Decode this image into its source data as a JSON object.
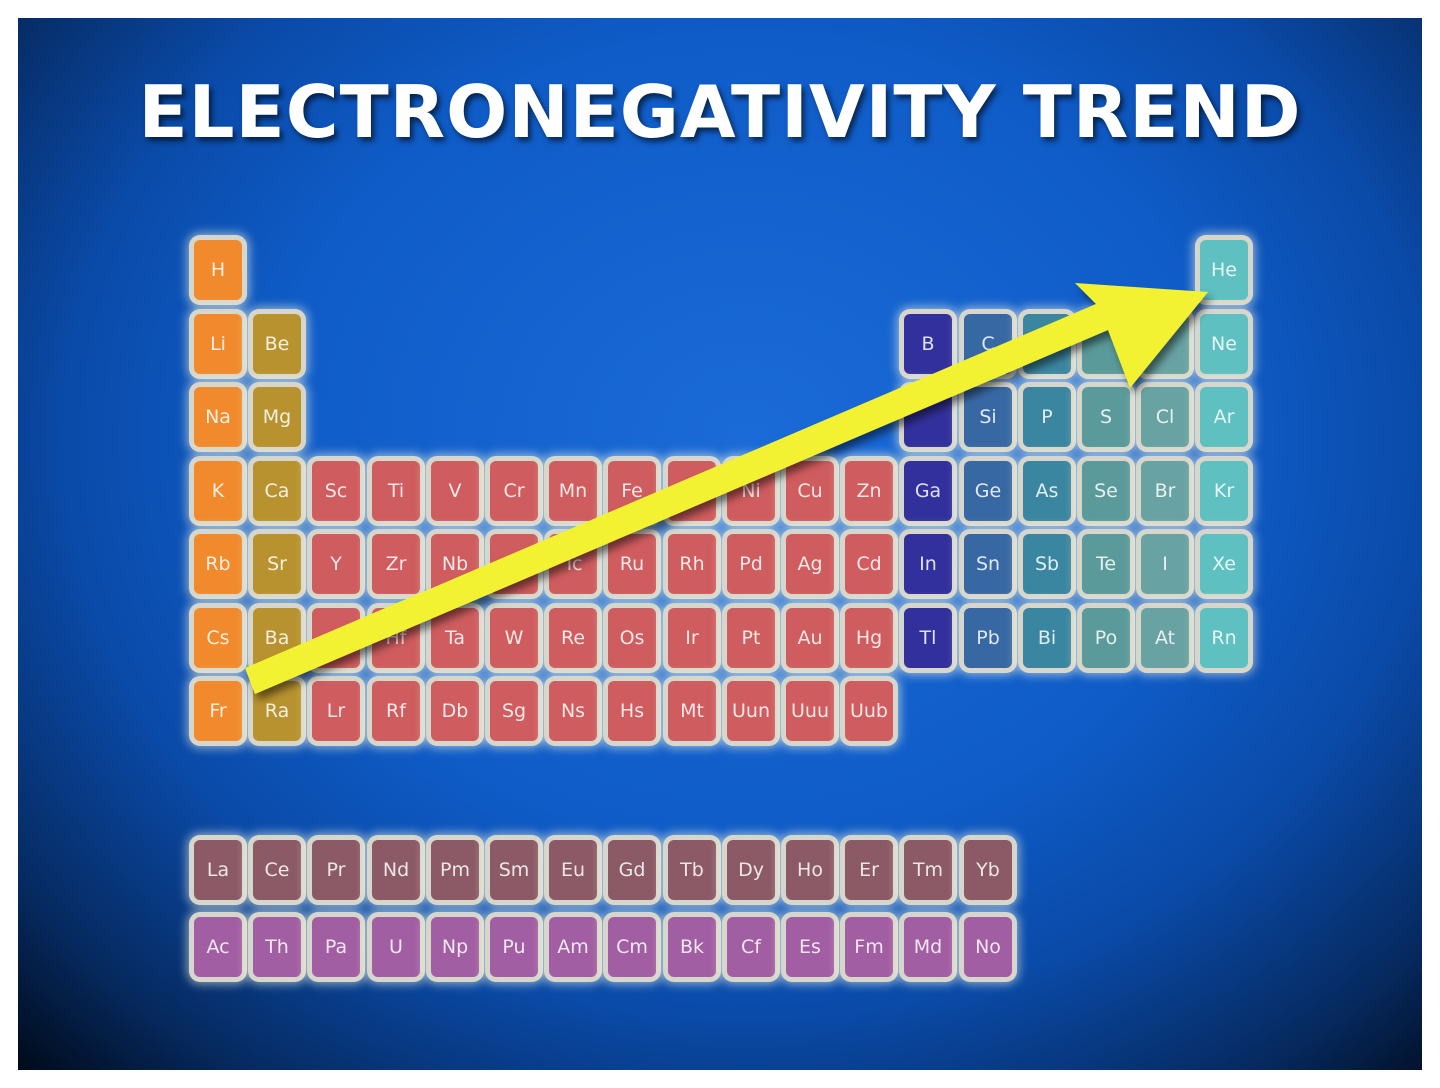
{
  "title": "ELECTRONEGATIVITY TREND",
  "colors": {
    "group1": "#f08a2c",
    "group2": "#b8922e",
    "transition": "#cf5c5e",
    "g13": "#32309c",
    "g14": "#3868a4",
    "g15": "#3a86a0",
    "g16": "#5a9a9a",
    "g17": "#68a2a2",
    "g18": "#5ec0c0",
    "lanthanide": "#8c5a66",
    "actinide": "#a25ea2",
    "arrow": "#f2f230"
  },
  "main_table": [
    [
      "H",
      "",
      "",
      "",
      "",
      "",
      "",
      "",
      "",
      "",
      "",
      "",
      "",
      "",
      "",
      "",
      "",
      "He"
    ],
    [
      "Li",
      "Be",
      "",
      "",
      "",
      "",
      "",
      "",
      "",
      "",
      "",
      "",
      "B",
      "C",
      "N",
      "",
      "",
      "Ne"
    ],
    [
      "Na",
      "Mg",
      "",
      "",
      "",
      "",
      "",
      "",
      "",
      "",
      "",
      "",
      "",
      "Si",
      "P",
      "S",
      "Cl",
      "Ar"
    ],
    [
      "K",
      "Ca",
      "Sc",
      "Ti",
      "V",
      "Cr",
      "Mn",
      "Fe",
      "",
      "Ni",
      "Cu",
      "Zn",
      "Ga",
      "Ge",
      "As",
      "Se",
      "Br",
      "Kr"
    ],
    [
      "Rb",
      "Sr",
      "Y",
      "Zr",
      "Nb",
      "",
      "Tc",
      "Ru",
      "Rh",
      "Pd",
      "Ag",
      "Cd",
      "In",
      "Sn",
      "Sb",
      "Te",
      "I",
      "Xe"
    ],
    [
      "Cs",
      "Ba",
      "",
      "Hf",
      "Ta",
      "W",
      "Re",
      "Os",
      "Ir",
      "Pt",
      "Au",
      "Hg",
      "Tl",
      "Pb",
      "Bi",
      "Po",
      "At",
      "Rn"
    ],
    [
      "Fr",
      "Ra",
      "Lr",
      "Rf",
      "Db",
      "Sg",
      "Ns",
      "Hs",
      "Mt",
      "Uun",
      "Uuu",
      "Uub"
    ]
  ],
  "lanthanides": [
    "La",
    "Ce",
    "Pr",
    "Nd",
    "Pm",
    "Sm",
    "Eu",
    "Gd",
    "Tb",
    "Dy",
    "Ho",
    "Er",
    "Tm",
    "Yb"
  ],
  "actinides": [
    "Ac",
    "Th",
    "Pa",
    "U",
    "Np",
    "Pu",
    "Am",
    "Cm",
    "Bk",
    "Cf",
    "Es",
    "Fm",
    "Md",
    "No"
  ]
}
